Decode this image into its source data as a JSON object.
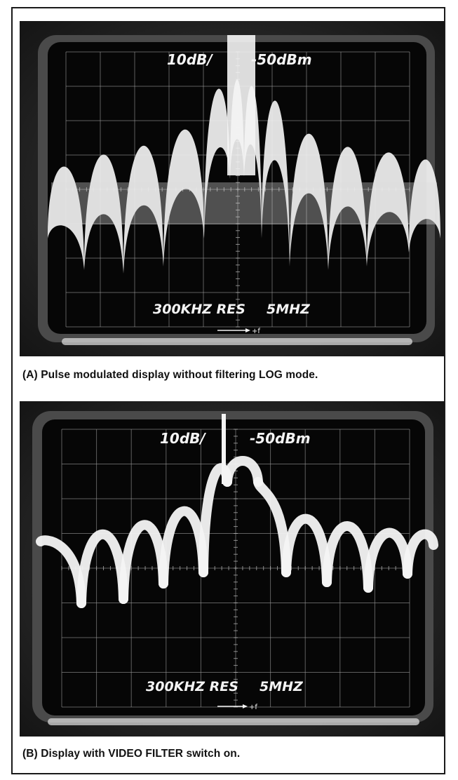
{
  "panels": [
    {
      "caption": "(A) Pulse modulated display without filtering LOG mode.",
      "scale_text": "10dB/",
      "ref_level_text": "-50dBm",
      "resolution_text": "300KHZ RES",
      "span_text": "5MHZ",
      "freq_arrow_text": "+f",
      "trace_mode": "unfiltered"
    },
    {
      "caption": "(B) Display with VIDEO FILTER switch on.",
      "scale_text": "10dB/",
      "ref_level_text": "-50dBm",
      "resolution_text": "300KHZ RES",
      "span_text": "5MHZ",
      "freq_arrow_text": "+f",
      "trace_mode": "video-filtered"
    }
  ],
  "colors": {
    "crt_background": "#050505",
    "trace": "#f4f4f4",
    "graticule": "#9a9a9a",
    "bezel": "#3a3a3a"
  }
}
